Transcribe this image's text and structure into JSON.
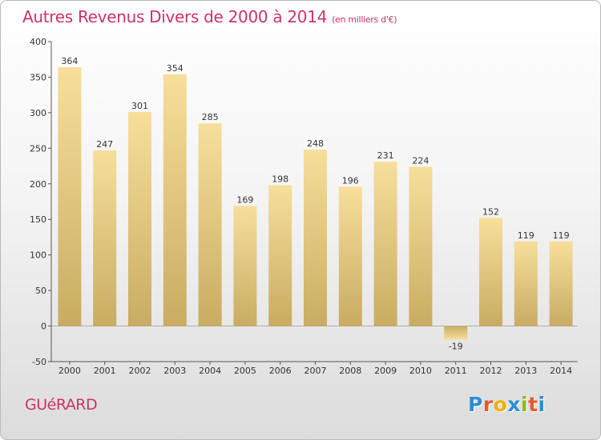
{
  "title": "Autres Revenus Divers de 2000 à 2014",
  "title_unit": "(en milliers d'€)",
  "commune": "GUéRARD",
  "logo": {
    "text": "Proxiti",
    "letters": [
      {
        "ch": "P",
        "color": "#2b8fd6"
      },
      {
        "ch": "r",
        "color": "#e85a2a"
      },
      {
        "ch": "o",
        "color": "#f0b000"
      },
      {
        "ch": "x",
        "color": "#2b8fd6"
      },
      {
        "ch": "i",
        "color": "#88bb22"
      },
      {
        "ch": "t",
        "color": "#e85a2a"
      },
      {
        "ch": "i",
        "color": "#2b8fd6"
      }
    ]
  },
  "colors": {
    "title": "#cc3366",
    "bar_top": "#f7df9b",
    "bar_bottom": "#c9ac62",
    "axis": "#555555"
  },
  "chart_data": {
    "type": "bar",
    "title": "Autres Revenus Divers de 2000 à 2014",
    "unit": "(en milliers d'€)",
    "categories": [
      "2000",
      "2001",
      "2002",
      "2003",
      "2004",
      "2005",
      "2006",
      "2007",
      "2008",
      "2009",
      "2010",
      "2011",
      "2012",
      "2013",
      "2014"
    ],
    "values": [
      364,
      247,
      301,
      354,
      285,
      169,
      198,
      248,
      196,
      231,
      224,
      -19,
      152,
      119,
      119
    ],
    "value_labels": [
      "364",
      "247",
      "301",
      "354",
      "285",
      "169",
      "198",
      "248",
      "196",
      "231",
      "224",
      "-19",
      "152",
      "119",
      "119"
    ],
    "ylim": [
      -50,
      400
    ],
    "yticks": [
      -50,
      0,
      50,
      100,
      150,
      200,
      250,
      300,
      350,
      400
    ],
    "grid": false,
    "legend": "none"
  }
}
